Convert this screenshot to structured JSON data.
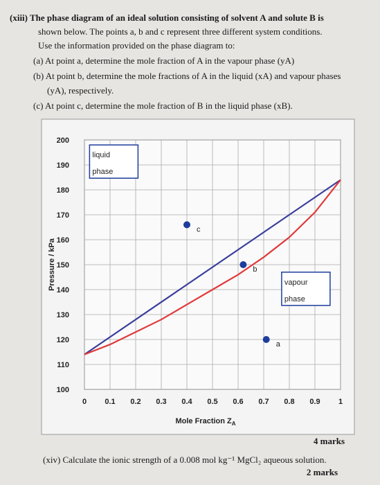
{
  "question": {
    "lines": [
      "(xiii) The phase diagram of an ideal solution consisting of solvent A and solute B is",
      "shown below. The points a, b and c represent three different system conditions.",
      "Use the information provided on the phase diagram to:",
      "(a) At point a, determine the mole fraction of A in the vapour phase (yA)",
      "(b) At point b, determine the mole fractions of A in the liquid (xA) and vapour phases",
      "(yA), respectively.",
      "(c) At point c, determine the mole fraction of B in the liquid phase (xB)."
    ],
    "marks": "4 marks"
  },
  "next_question": {
    "text": "(xiv) Calculate the ionic strength of a 0.008 mol kg⁻¹ MgCl₂ aqueous solution.",
    "marks": "2 marks"
  },
  "chart_data": {
    "type": "line",
    "xlabel": "Mole Fraction Z",
    "xlabel_subscript": "A",
    "ylabel": "Pressure / kPa",
    "xlim": [
      0,
      1
    ],
    "ylim": [
      100,
      200
    ],
    "xticks": [
      0,
      0.1,
      0.2,
      0.3,
      0.4,
      0.5,
      0.6,
      0.7,
      0.8,
      0.9,
      1
    ],
    "yticks": [
      100,
      110,
      120,
      130,
      140,
      150,
      160,
      170,
      180,
      190,
      200
    ],
    "grid": true,
    "series": [
      {
        "color": "#3b3f9c",
        "x": [
          0,
          1
        ],
        "values": [
          114,
          184
        ]
      },
      {
        "color": "#e0393a",
        "x": [
          0,
          0.1,
          0.2,
          0.3,
          0.4,
          0.5,
          0.6,
          0.7,
          0.8,
          0.9,
          1
        ],
        "values": [
          114,
          118,
          123,
          128,
          134,
          140,
          146,
          153,
          161,
          171,
          184
        ]
      }
    ],
    "points": [
      {
        "label": "c",
        "x": 0.4,
        "y": 166
      },
      {
        "label": "b",
        "x": 0.62,
        "y": 150
      },
      {
        "label": "a",
        "x": 0.71,
        "y": 120
      }
    ],
    "regions": [
      {
        "lines": [
          "liquid",
          "phase"
        ],
        "x": 0.02,
        "y": 193
      },
      {
        "lines": [
          "vapour",
          "phase"
        ],
        "x": 0.77,
        "y": 142
      }
    ]
  }
}
